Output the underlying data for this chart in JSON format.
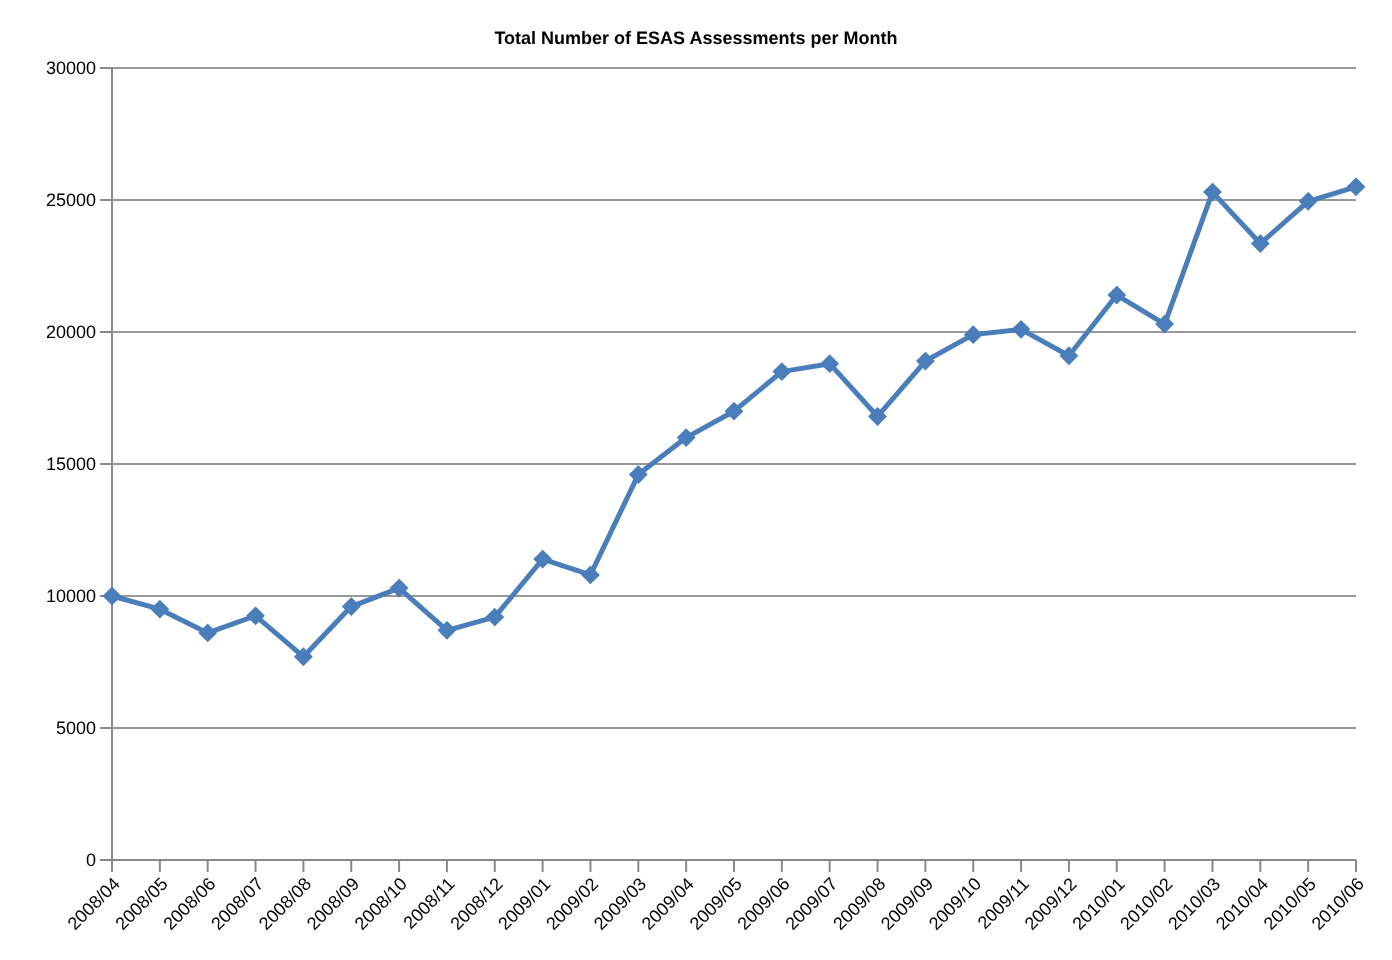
{
  "chart_data": {
    "type": "line",
    "title": "Total Number of ESAS Assessments per Month",
    "categories": [
      "2008/04",
      "2008/05",
      "2008/06",
      "2008/07",
      "2008/08",
      "2008/09",
      "2008/10",
      "2008/11",
      "2008/12",
      "2009/01",
      "2009/02",
      "2009/03",
      "2009/04",
      "2009/05",
      "2009/06",
      "2009/07",
      "2009/08",
      "2009/09",
      "2009/10",
      "2009/11",
      "2009/12",
      "2010/01",
      "2010/02",
      "2010/03",
      "2010/04",
      "2010/05",
      "2010/06"
    ],
    "series": [
      {
        "color": "#4a7ebb",
        "values": [
          10000,
          9500,
          8600,
          9250,
          7700,
          9600,
          10300,
          8700,
          9200,
          11400,
          10800,
          14600,
          16000,
          17000,
          18500,
          18800,
          16800,
          18900,
          19900,
          20100,
          19100,
          21400,
          20300,
          25300,
          23350,
          24950,
          25500
        ]
      }
    ],
    "ylim": [
      0,
      30000
    ],
    "yticks": [
      0,
      5000,
      10000,
      15000,
      20000,
      25000,
      30000
    ],
    "grid": "y",
    "marker": "diamond",
    "legend": false
  }
}
